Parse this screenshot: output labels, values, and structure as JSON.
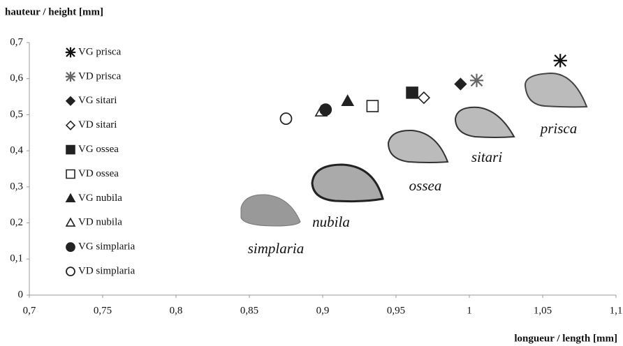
{
  "chart_data": {
    "type": "scatter",
    "title": "hauteur / height [mm]",
    "x_label": "longueur / length [mm]",
    "xlim": [
      0.7,
      1.1
    ],
    "ylim": [
      0,
      0.7
    ],
    "xticks": [
      {
        "value": 0.7,
        "label": "0,7"
      },
      {
        "value": 0.75,
        "label": "0,75"
      },
      {
        "value": 0.8,
        "label": "0,8"
      },
      {
        "value": 0.85,
        "label": "0,85"
      },
      {
        "value": 0.9,
        "label": "0,9"
      },
      {
        "value": 0.95,
        "label": "0,95"
      },
      1,
      {
        "value": 1.05,
        "label": "1,05"
      },
      {
        "value": 1.1,
        "label": "1,1"
      }
    ],
    "yticks": [
      0,
      {
        "value": 0.1,
        "label": "0,1"
      },
      {
        "value": 0.2,
        "label": "0,2"
      },
      {
        "value": 0.3,
        "label": "0,3"
      },
      {
        "value": 0.4,
        "label": "0,4"
      },
      {
        "value": 0.5,
        "label": "0,5"
      },
      {
        "value": 0.6,
        "label": "0,6"
      },
      {
        "value": 0.7,
        "label": "0,7"
      }
    ],
    "grid": false,
    "legend": "left",
    "series": [
      {
        "name": "VG prisca",
        "color": "#111111",
        "marker": "asterisk",
        "x": [
          1.062
        ],
        "values": [
          0.65
        ]
      },
      {
        "name": "VD prisca",
        "color": "#666666",
        "marker": "asterisk",
        "x": [
          1.005
        ],
        "values": [
          0.595
        ]
      },
      {
        "name": "VG sitari",
        "color": "#222222",
        "marker": "diamond-filled",
        "x": [
          0.994
        ],
        "values": [
          0.585
        ]
      },
      {
        "name": "VD sitari",
        "color": "#222222",
        "marker": "diamond-open",
        "x": [
          0.969
        ],
        "values": [
          0.547
        ]
      },
      {
        "name": "VG ossea",
        "color": "#222222",
        "marker": "square-filled",
        "x": [
          0.961
        ],
        "values": [
          0.561
        ]
      },
      {
        "name": "VD ossea",
        "color": "#222222",
        "marker": "square-open",
        "x": [
          0.934
        ],
        "values": [
          0.524
        ]
      },
      {
        "name": "VG nubila",
        "color": "#222222",
        "marker": "triangle-filled",
        "x": [
          0.917
        ],
        "values": [
          0.538
        ]
      },
      {
        "name": "VD nubila",
        "color": "#222222",
        "marker": "triangle-open",
        "x": [
          0.899
        ],
        "values": [
          0.509
        ]
      },
      {
        "name": "VG simplaria",
        "color": "#222222",
        "marker": "circle-filled",
        "x": [
          0.902
        ],
        "values": [
          0.514
        ]
      },
      {
        "name": "VD simplaria",
        "color": "#222222",
        "marker": "circle-open",
        "x": [
          0.875
        ],
        "values": [
          0.489
        ]
      }
    ],
    "annotations": [
      "simplaria",
      "nubila",
      "ossea",
      "sitari",
      "prisca"
    ]
  }
}
